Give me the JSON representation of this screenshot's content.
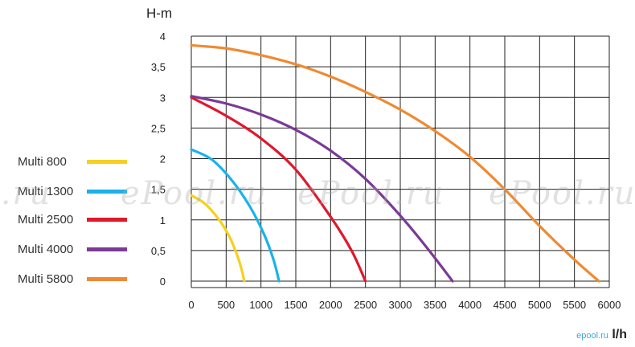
{
  "chart_data": {
    "type": "line",
    "title": "",
    "ylabel": "H-m",
    "xlabel": "l/h",
    "xlim": [
      0,
      6000
    ],
    "ylim": [
      0,
      4
    ],
    "grid": true,
    "legend_position": "left",
    "x_ticks": [
      "0",
      "500",
      "1000",
      "1500",
      "2000",
      "2500",
      "3000",
      "3500",
      "4000",
      "4500",
      "5000",
      "5500",
      "6000"
    ],
    "y_ticks": [
      "0",
      "0,5",
      "1",
      "1,5",
      "2",
      "2,5",
      "3",
      "3,5",
      "4"
    ],
    "series": [
      {
        "name": "Multi 800",
        "color": "#f5d020",
        "x": [
          0,
          200,
          400,
          550,
          650,
          720,
          760
        ],
        "y": [
          1.4,
          1.26,
          1.0,
          0.72,
          0.45,
          0.2,
          0
        ]
      },
      {
        "name": "Multi 1300",
        "color": "#1ab2e8",
        "x": [
          0,
          300,
          600,
          850,
          1050,
          1180,
          1260
        ],
        "y": [
          2.15,
          1.98,
          1.62,
          1.2,
          0.75,
          0.35,
          0
        ]
      },
      {
        "name": "Multi 2500",
        "color": "#e0182c",
        "x": [
          0,
          500,
          1000,
          1500,
          2000,
          2300,
          2500
        ],
        "y": [
          3.0,
          2.7,
          2.33,
          1.82,
          1.05,
          0.5,
          0
        ]
      },
      {
        "name": "Multi 4000",
        "color": "#7a3a96",
        "x": [
          0,
          500,
          1000,
          1500,
          2000,
          2500,
          3000,
          3400,
          3750
        ],
        "y": [
          3.02,
          2.9,
          2.72,
          2.47,
          2.13,
          1.67,
          1.07,
          0.52,
          0
        ]
      },
      {
        "name": "Multi 5800",
        "color": "#ef8a32",
        "x": [
          0,
          500,
          1000,
          1500,
          2000,
          2500,
          3000,
          3500,
          4000,
          4500,
          5000,
          5500,
          5850
        ],
        "y": [
          3.85,
          3.8,
          3.69,
          3.54,
          3.34,
          3.09,
          2.8,
          2.45,
          2.03,
          1.5,
          0.9,
          0.35,
          0
        ]
      }
    ]
  },
  "watermarks": [
    "l.ru",
    "ePool.ru",
    "ePool.ru",
    "ePool.ru"
  ],
  "footer": {
    "brand": "epool.ru",
    "unit": "l/h"
  }
}
